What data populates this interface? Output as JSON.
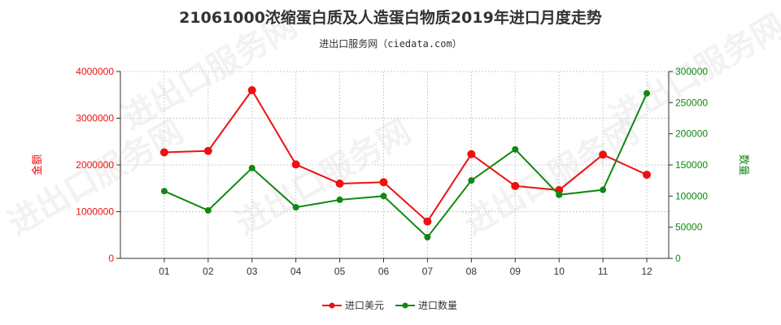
{
  "title": "21061000浓缩蛋白质及人造蛋白物质2019年进口月度走势",
  "subtitle": "进出口服务网（ciedata.com）",
  "watermark": "进出口服务网",
  "colors": {
    "amount": "#ee1111",
    "quantity": "#118811",
    "grid": "#cccccc",
    "axis": "#333333"
  },
  "chart_data": {
    "type": "line",
    "categories": [
      "01",
      "02",
      "03",
      "04",
      "05",
      "06",
      "07",
      "08",
      "09",
      "10",
      "11",
      "12"
    ],
    "y_left": {
      "label": "金额",
      "ylim": [
        0,
        4000000
      ],
      "ticks": [
        "0",
        "1000000",
        "2000000",
        "3000000",
        "4000000"
      ]
    },
    "y_right": {
      "label": "数量",
      "ylim": [
        0,
        300000
      ],
      "ticks": [
        "0",
        "50000",
        "100000",
        "150000",
        "200000",
        "250000",
        "300000"
      ]
    },
    "grid": true,
    "legend_position": "bottom",
    "series": [
      {
        "name": "进口美元",
        "axis": "left",
        "color": "#ee1111",
        "values": [
          2270000,
          2300000,
          3600000,
          2010000,
          1600000,
          1630000,
          790000,
          2230000,
          1550000,
          1460000,
          2220000,
          1790000
        ]
      },
      {
        "name": "进口数量",
        "axis": "right",
        "color": "#118811",
        "values": [
          108000,
          77000,
          145000,
          82000,
          94000,
          100000,
          34000,
          125000,
          175000,
          102000,
          110000,
          265000
        ]
      }
    ]
  }
}
